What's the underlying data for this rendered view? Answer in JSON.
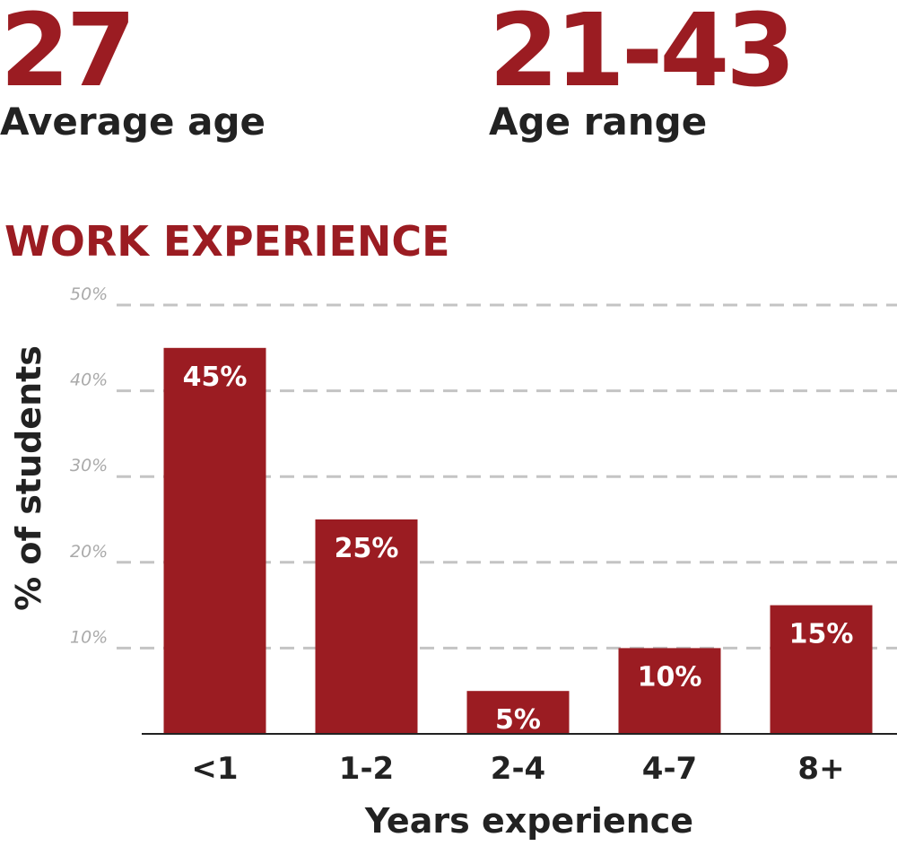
{
  "stats": [
    {
      "value": "27",
      "label": "Average age"
    },
    {
      "value": "21-43",
      "label": "Age range"
    }
  ],
  "chart_data": {
    "type": "bar",
    "title": "WORK EXPERIENCE",
    "xlabel": "Years experience",
    "ylabel": "% of students",
    "categories": [
      "<1",
      "1-2",
      "2-4",
      "4-7",
      "8+"
    ],
    "values": [
      45,
      25,
      5,
      10,
      15
    ],
    "value_labels": [
      "45%",
      "25%",
      "5%",
      "10%",
      "15%"
    ],
    "color": "#9b1c22",
    "ylim": [
      0,
      50
    ],
    "yticks": [
      {
        "value": 10,
        "label": "10%"
      },
      {
        "value": 20,
        "label": "20%"
      },
      {
        "value": 30,
        "label": "30%"
      },
      {
        "value": 40,
        "label": "40%"
      },
      {
        "value": 50,
        "label": "50%"
      }
    ],
    "grid": true
  }
}
